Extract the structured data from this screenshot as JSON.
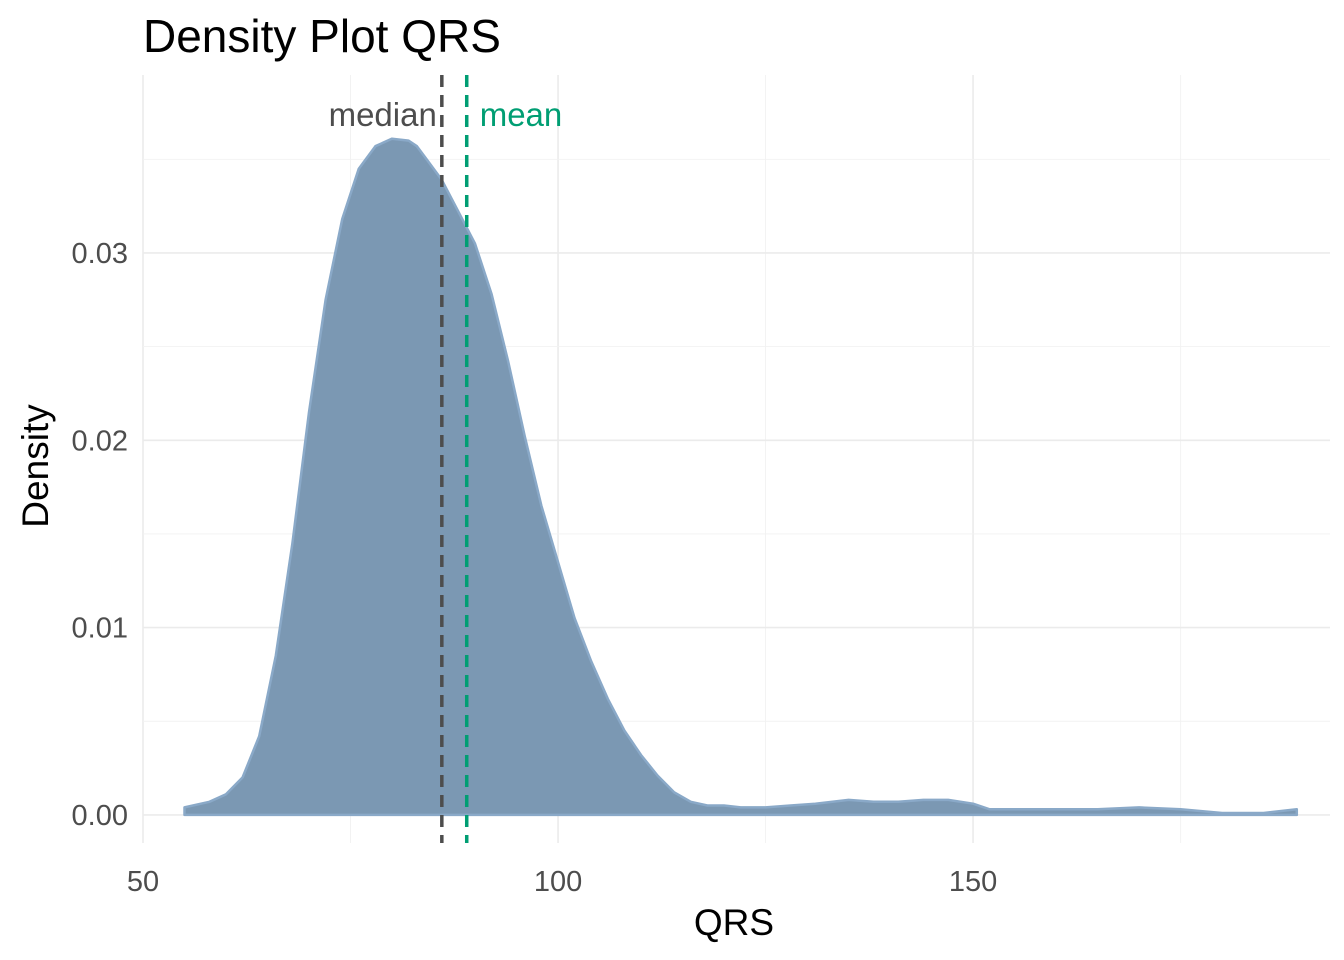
{
  "chart_data": {
    "type": "area",
    "title": "Density Plot QRS",
    "xlabel": "QRS",
    "ylabel": "Density",
    "xlim": [
      50,
      193
    ],
    "ylim": [
      -0.0015,
      0.0395
    ],
    "x_ticks": [
      50,
      100,
      150
    ],
    "y_ticks": [
      0.0,
      0.01,
      0.02,
      0.03
    ],
    "x_tick_labels": [
      "50",
      "100",
      "150"
    ],
    "y_tick_labels": [
      "0.00",
      "0.01",
      "0.02",
      "0.03"
    ],
    "grid": true,
    "colors": {
      "fill": "#7b98b3",
      "stroke": "#8aa9c8",
      "median": "#4d4d4d",
      "mean": "#009e73"
    },
    "series": [
      {
        "x": [
          55,
          58,
          60,
          62,
          64,
          66,
          68,
          70,
          72,
          74,
          76,
          78,
          80,
          82,
          83,
          84,
          86,
          88,
          90,
          92,
          94,
          96,
          98,
          100,
          102,
          104,
          106,
          108,
          110,
          112,
          114,
          116,
          118,
          120,
          122,
          125,
          128,
          131,
          135,
          138,
          141,
          144,
          147,
          150,
          152,
          156,
          160,
          165,
          170,
          175,
          180,
          185,
          189
        ],
        "y": [
          0.0004,
          0.0007,
          0.0011,
          0.002,
          0.0042,
          0.0085,
          0.0145,
          0.0215,
          0.0275,
          0.0318,
          0.0345,
          0.0357,
          0.0361,
          0.036,
          0.0357,
          0.0351,
          0.0339,
          0.0322,
          0.0305,
          0.0278,
          0.0242,
          0.0202,
          0.0165,
          0.0135,
          0.0105,
          0.0082,
          0.0062,
          0.0045,
          0.0032,
          0.0021,
          0.0012,
          0.0007,
          0.0005,
          0.0005,
          0.0004,
          0.0004,
          0.0005,
          0.0006,
          0.0008,
          0.0007,
          0.0007,
          0.0008,
          0.0008,
          0.0006,
          0.0003,
          0.0003,
          0.0003,
          0.0003,
          0.0004,
          0.0003,
          0.0001,
          0.0001,
          0.0003
        ]
      }
    ],
    "vlines": [
      {
        "label": "median",
        "x": 86
      },
      {
        "label": "mean",
        "x": 89
      }
    ]
  }
}
